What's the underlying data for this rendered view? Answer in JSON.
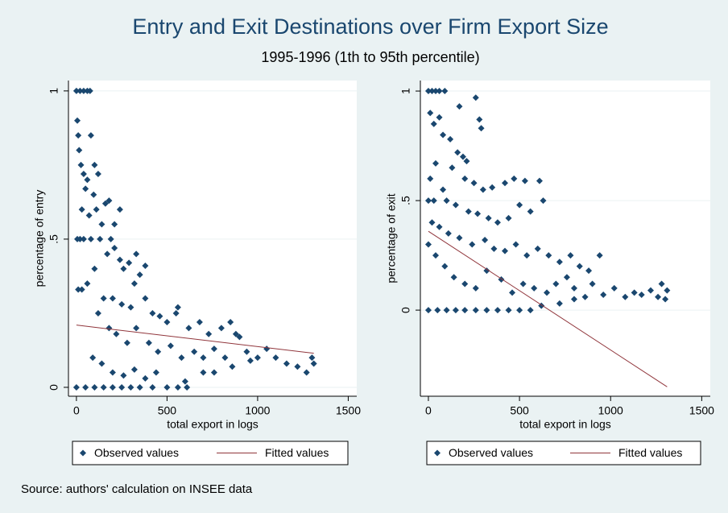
{
  "title": "Entry and Exit Destinations over Firm Export Size",
  "subtitle": "1995-1996 (1th to 95th percentile)",
  "note": "Source: authors' calculation on INSEE data",
  "chart_data": [
    {
      "type": "scatter",
      "x_label": "total export in logs",
      "y_label": "percentage of entry",
      "xlim": [
        -44,
        1547
      ],
      "ylim": [
        -0.03,
        1.035
      ],
      "xticks": [
        0,
        500,
        1000,
        1500
      ],
      "yticks": [
        0,
        {
          "value": 0.5,
          "label": ".5"
        },
        1
      ],
      "grid": true,
      "series": [
        {
          "name": "Observed values",
          "type": "scatter",
          "color": "#1a476f",
          "x": [
            0,
            20,
            40,
            60,
            75,
            5,
            10,
            15,
            25,
            40,
            80,
            60,
            100,
            120,
            95,
            50,
            30,
            70,
            110,
            140,
            160,
            190,
            5,
            20,
            40,
            80,
            130,
            170,
            210,
            240,
            260,
            290,
            320,
            350,
            100,
            60,
            30,
            10,
            150,
            200,
            250,
            300,
            380,
            420,
            460,
            500,
            550,
            620,
            680,
            730,
            800,
            850,
            900,
            120,
            180,
            220,
            280,
            330,
            400,
            450,
            520,
            580,
            650,
            700,
            760,
            820,
            940,
            1000,
            1050,
            1100,
            1160,
            1220,
            1270,
            1310,
            1300,
            90,
            140,
            200,
            260,
            320,
            380,
            440,
            600,
            0,
            50,
            100,
            150,
            200,
            250,
            300,
            350,
            420,
            500,
            560,
            610,
            700,
            760,
            860,
            960,
            240,
            180,
            210,
            330,
            380,
            560,
            880
          ],
          "values": [
            1,
            1,
            1,
            1,
            1,
            0.9,
            0.85,
            0.8,
            0.75,
            0.72,
            0.85,
            0.7,
            0.75,
            0.72,
            0.65,
            0.67,
            0.6,
            0.58,
            0.6,
            0.55,
            0.62,
            0.5,
            0.5,
            0.5,
            0.5,
            0.5,
            0.5,
            0.45,
            0.47,
            0.43,
            0.4,
            0.42,
            0.35,
            0.38,
            0.4,
            0.35,
            0.33,
            0.33,
            0.3,
            0.3,
            0.28,
            0.27,
            0.3,
            0.25,
            0.24,
            0.22,
            0.25,
            0.2,
            0.22,
            0.18,
            0.2,
            0.22,
            0.17,
            0.25,
            0.2,
            0.18,
            0.15,
            0.2,
            0.15,
            0.12,
            0.14,
            0.1,
            0.12,
            0.1,
            0.13,
            0.1,
            0.12,
            0.1,
            0.13,
            0.1,
            0.08,
            0.07,
            0.05,
            0.08,
            0.1,
            0.1,
            0.08,
            0.05,
            0.04,
            0.06,
            0.03,
            0.05,
            0.02,
            0,
            0,
            0,
            0,
            0,
            0,
            0,
            0,
            0,
            0,
            0,
            0,
            0.05,
            0.05,
            0.07,
            0.09,
            0.6,
            0.63,
            0.55,
            0.45,
            0.41,
            0.27,
            0.18
          ]
        },
        {
          "name": "Fitted values",
          "type": "line",
          "color": "#90353b",
          "x": [
            0,
            1310
          ],
          "values": [
            0.21,
            0.115
          ]
        }
      ]
    },
    {
      "type": "scatter",
      "x_label": "total export in logs",
      "y_label": "percentage of exit",
      "xlim": [
        -44,
        1547
      ],
      "ylim": [
        -0.393,
        1.048
      ],
      "xticks": [
        0,
        500,
        1000,
        1500
      ],
      "yticks": [
        0,
        {
          "value": 0.5,
          "label": ".5"
        },
        1
      ],
      "grid": true,
      "series": [
        {
          "name": "Observed values",
          "type": "scatter",
          "color": "#1a476f",
          "x": [
            0,
            20,
            40,
            60,
            90,
            10,
            30,
            60,
            80,
            120,
            260,
            170,
            280,
            290,
            160,
            190,
            210,
            200,
            130,
            40,
            10,
            80,
            250,
            300,
            350,
            420,
            470,
            530,
            610,
            630,
            500,
            0,
            30,
            100,
            150,
            220,
            270,
            330,
            380,
            440,
            560,
            20,
            60,
            110,
            170,
            240,
            310,
            360,
            420,
            480,
            540,
            600,
            660,
            720,
            780,
            830,
            880,
            940,
            0,
            40,
            90,
            140,
            200,
            260,
            320,
            400,
            460,
            520,
            580,
            650,
            700,
            760,
            800,
            860,
            900,
            960,
            1020,
            1080,
            1130,
            1170,
            1220,
            1260,
            1300,
            1310,
            1280,
            0,
            50,
            100,
            150,
            200,
            260,
            320,
            380,
            440,
            500,
            560,
            620,
            720,
            800
          ],
          "values": [
            1,
            1,
            1,
            1,
            1,
            0.9,
            0.85,
            0.88,
            0.8,
            0.78,
            0.97,
            0.93,
            0.87,
            0.83,
            0.72,
            0.7,
            0.68,
            0.6,
            0.65,
            0.67,
            0.6,
            0.55,
            0.58,
            0.55,
            0.56,
            0.58,
            0.6,
            0.59,
            0.59,
            0.5,
            0.48,
            0.5,
            0.5,
            0.5,
            0.48,
            0.45,
            0.44,
            0.42,
            0.4,
            0.42,
            0.45,
            0.4,
            0.38,
            0.35,
            0.33,
            0.3,
            0.32,
            0.28,
            0.27,
            0.3,
            0.25,
            0.28,
            0.25,
            0.22,
            0.25,
            0.2,
            0.18,
            0.25,
            0.3,
            0.25,
            0.2,
            0.15,
            0.12,
            0.1,
            0.18,
            0.14,
            0.08,
            0.12,
            0.1,
            0.08,
            0.12,
            0.15,
            0.1,
            0.06,
            0.12,
            0.07,
            0.1,
            0.06,
            0.08,
            0.07,
            0.09,
            0.06,
            0.05,
            0.09,
            0.12,
            0,
            0,
            0,
            0,
            0,
            0,
            0,
            0,
            0,
            0,
            0,
            0.02,
            0.03,
            0.05
          ]
        },
        {
          "name": "Fitted values",
          "type": "line",
          "color": "#90353b",
          "x": [
            0,
            1310
          ],
          "values": [
            0.36,
            -0.35
          ]
        }
      ]
    }
  ]
}
